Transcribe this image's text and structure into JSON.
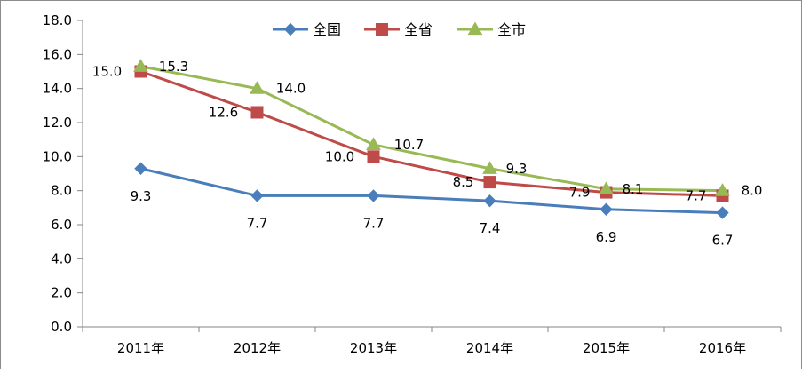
{
  "chart_data": {
    "type": "line",
    "title": "",
    "xlabel": "",
    "ylabel": "",
    "categories": [
      "2011年",
      "2012年",
      "2013年",
      "2014年",
      "2015年",
      "2016年"
    ],
    "ylim": [
      0,
      18
    ],
    "ytick_step": 2,
    "yticks": [
      "0.0",
      "2.0",
      "4.0",
      "6.0",
      "8.0",
      "10.0",
      "12.0",
      "14.0",
      "16.0",
      "18.0"
    ],
    "grid": false,
    "legend_position": "top",
    "series": [
      {
        "name": "全国",
        "values": [
          9.3,
          7.7,
          7.7,
          7.4,
          6.9,
          6.7
        ],
        "value_labels": [
          "9.3",
          "7.7",
          "7.7",
          "7.4",
          "6.9",
          "6.7"
        ],
        "color": "#4a7ebb",
        "marker": "diamond"
      },
      {
        "name": "全省",
        "values": [
          15.0,
          12.6,
          10.0,
          8.5,
          7.9,
          7.7
        ],
        "value_labels": [
          "15.0",
          "12.6",
          "10.0",
          "8.5",
          "7.9",
          "7.7"
        ],
        "color": "#be4b48",
        "marker": "square"
      },
      {
        "name": "全市",
        "values": [
          15.3,
          14.0,
          10.7,
          9.3,
          8.1,
          8.0
        ],
        "value_labels": [
          "15.3",
          "14.0",
          "10.7",
          "9.3",
          "8.1",
          "8.0"
        ],
        "color": "#98b954",
        "marker": "triangle"
      }
    ]
  }
}
